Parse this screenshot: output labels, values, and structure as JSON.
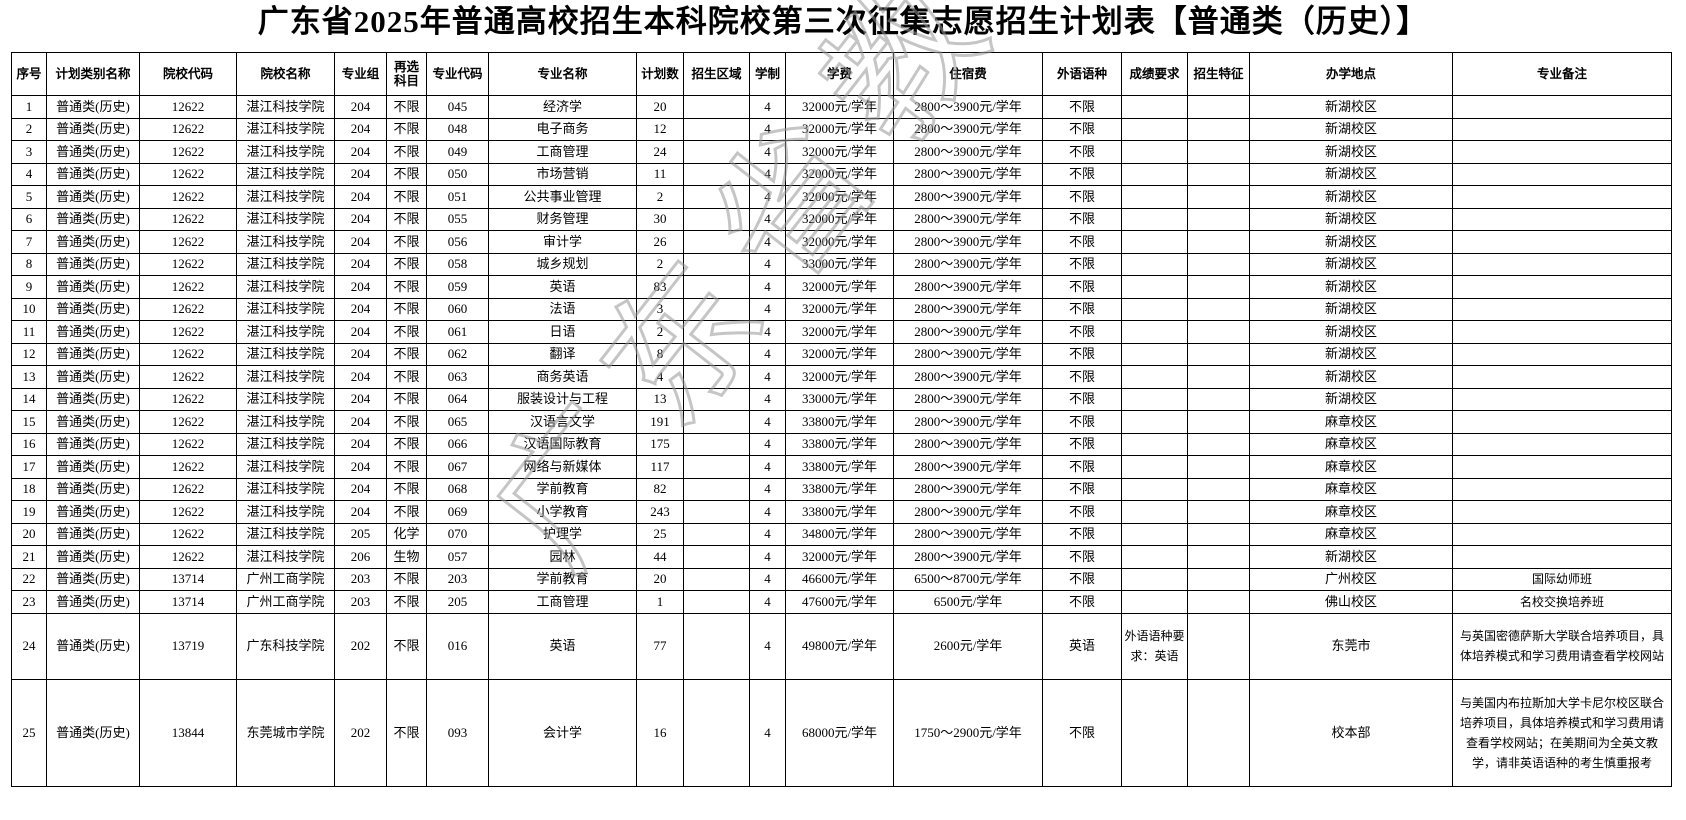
{
  "title": "广东省2025年普通高校招生本科院校第三次征集志愿招生计划表【普通类（历史）】",
  "watermark": "广东省教育考试院",
  "headers": [
    "序号",
    "计划类别名称",
    "院校代码",
    "院校名称",
    "专业组",
    "再选科目",
    "专业代码",
    "专业名称",
    "计划数",
    "招生区域",
    "学制",
    "学费",
    "住宿费",
    "外语语种",
    "成绩要求",
    "招生特征",
    "办学地点",
    "专业备注"
  ],
  "rows": [
    [
      "1",
      "普通类(历史)",
      "12622",
      "湛江科技学院",
      "204",
      "不限",
      "045",
      "经济学",
      "20",
      "",
      "4",
      "32000元/学年",
      "2800～3900元/学年",
      "不限",
      "",
      "",
      "新湖校区",
      ""
    ],
    [
      "2",
      "普通类(历史)",
      "12622",
      "湛江科技学院",
      "204",
      "不限",
      "048",
      "电子商务",
      "12",
      "",
      "4",
      "32000元/学年",
      "2800～3900元/学年",
      "不限",
      "",
      "",
      "新湖校区",
      ""
    ],
    [
      "3",
      "普通类(历史)",
      "12622",
      "湛江科技学院",
      "204",
      "不限",
      "049",
      "工商管理",
      "24",
      "",
      "4",
      "32000元/学年",
      "2800～3900元/学年",
      "不限",
      "",
      "",
      "新湖校区",
      ""
    ],
    [
      "4",
      "普通类(历史)",
      "12622",
      "湛江科技学院",
      "204",
      "不限",
      "050",
      "市场营销",
      "11",
      "",
      "4",
      "32000元/学年",
      "2800～3900元/学年",
      "不限",
      "",
      "",
      "新湖校区",
      ""
    ],
    [
      "5",
      "普通类(历史)",
      "12622",
      "湛江科技学院",
      "204",
      "不限",
      "051",
      "公共事业管理",
      "2",
      "",
      "4",
      "32000元/学年",
      "2800～3900元/学年",
      "不限",
      "",
      "",
      "新湖校区",
      ""
    ],
    [
      "6",
      "普通类(历史)",
      "12622",
      "湛江科技学院",
      "204",
      "不限",
      "055",
      "财务管理",
      "30",
      "",
      "4",
      "32000元/学年",
      "2800～3900元/学年",
      "不限",
      "",
      "",
      "新湖校区",
      ""
    ],
    [
      "7",
      "普通类(历史)",
      "12622",
      "湛江科技学院",
      "204",
      "不限",
      "056",
      "审计学",
      "26",
      "",
      "4",
      "32000元/学年",
      "2800～3900元/学年",
      "不限",
      "",
      "",
      "新湖校区",
      ""
    ],
    [
      "8",
      "普通类(历史)",
      "12622",
      "湛江科技学院",
      "204",
      "不限",
      "058",
      "城乡规划",
      "2",
      "",
      "4",
      "33000元/学年",
      "2800～3900元/学年",
      "不限",
      "",
      "",
      "新湖校区",
      ""
    ],
    [
      "9",
      "普通类(历史)",
      "12622",
      "湛江科技学院",
      "204",
      "不限",
      "059",
      "英语",
      "83",
      "",
      "4",
      "32000元/学年",
      "2800～3900元/学年",
      "不限",
      "",
      "",
      "新湖校区",
      ""
    ],
    [
      "10",
      "普通类(历史)",
      "12622",
      "湛江科技学院",
      "204",
      "不限",
      "060",
      "法语",
      "3",
      "",
      "4",
      "32000元/学年",
      "2800～3900元/学年",
      "不限",
      "",
      "",
      "新湖校区",
      ""
    ],
    [
      "11",
      "普通类(历史)",
      "12622",
      "湛江科技学院",
      "204",
      "不限",
      "061",
      "日语",
      "2",
      "",
      "4",
      "32000元/学年",
      "2800～3900元/学年",
      "不限",
      "",
      "",
      "新湖校区",
      ""
    ],
    [
      "12",
      "普通类(历史)",
      "12622",
      "湛江科技学院",
      "204",
      "不限",
      "062",
      "翻译",
      "8",
      "",
      "4",
      "32000元/学年",
      "2800～3900元/学年",
      "不限",
      "",
      "",
      "新湖校区",
      ""
    ],
    [
      "13",
      "普通类(历史)",
      "12622",
      "湛江科技学院",
      "204",
      "不限",
      "063",
      "商务英语",
      "4",
      "",
      "4",
      "32000元/学年",
      "2800～3900元/学年",
      "不限",
      "",
      "",
      "新湖校区",
      ""
    ],
    [
      "14",
      "普通类(历史)",
      "12622",
      "湛江科技学院",
      "204",
      "不限",
      "064",
      "服装设计与工程",
      "13",
      "",
      "4",
      "33000元/学年",
      "2800～3900元/学年",
      "不限",
      "",
      "",
      "新湖校区",
      ""
    ],
    [
      "15",
      "普通类(历史)",
      "12622",
      "湛江科技学院",
      "204",
      "不限",
      "065",
      "汉语言文学",
      "191",
      "",
      "4",
      "33800元/学年",
      "2800～3900元/学年",
      "不限",
      "",
      "",
      "麻章校区",
      ""
    ],
    [
      "16",
      "普通类(历史)",
      "12622",
      "湛江科技学院",
      "204",
      "不限",
      "066",
      "汉语国际教育",
      "175",
      "",
      "4",
      "33800元/学年",
      "2800～3900元/学年",
      "不限",
      "",
      "",
      "麻章校区",
      ""
    ],
    [
      "17",
      "普通类(历史)",
      "12622",
      "湛江科技学院",
      "204",
      "不限",
      "067",
      "网络与新媒体",
      "117",
      "",
      "4",
      "33800元/学年",
      "2800～3900元/学年",
      "不限",
      "",
      "",
      "麻章校区",
      ""
    ],
    [
      "18",
      "普通类(历史)",
      "12622",
      "湛江科技学院",
      "204",
      "不限",
      "068",
      "学前教育",
      "82",
      "",
      "4",
      "33800元/学年",
      "2800～3900元/学年",
      "不限",
      "",
      "",
      "麻章校区",
      ""
    ],
    [
      "19",
      "普通类(历史)",
      "12622",
      "湛江科技学院",
      "204",
      "不限",
      "069",
      "小学教育",
      "243",
      "",
      "4",
      "33800元/学年",
      "2800～3900元/学年",
      "不限",
      "",
      "",
      "麻章校区",
      ""
    ],
    [
      "20",
      "普通类(历史)",
      "12622",
      "湛江科技学院",
      "205",
      "化学",
      "070",
      "护理学",
      "25",
      "",
      "4",
      "34800元/学年",
      "2800～3900元/学年",
      "不限",
      "",
      "",
      "麻章校区",
      ""
    ],
    [
      "21",
      "普通类(历史)",
      "12622",
      "湛江科技学院",
      "206",
      "生物",
      "057",
      "园林",
      "44",
      "",
      "4",
      "32000元/学年",
      "2800～3900元/学年",
      "不限",
      "",
      "",
      "新湖校区",
      ""
    ],
    [
      "22",
      "普通类(历史)",
      "13714",
      "广州工商学院",
      "203",
      "不限",
      "203",
      "学前教育",
      "20",
      "",
      "4",
      "46600元/学年",
      "6500～8700元/学年",
      "不限",
      "",
      "",
      "广州校区",
      "国际幼师班"
    ],
    [
      "23",
      "普通类(历史)",
      "13714",
      "广州工商学院",
      "203",
      "不限",
      "205",
      "工商管理",
      "1",
      "",
      "4",
      "47600元/学年",
      "6500元/学年",
      "不限",
      "",
      "",
      "佛山校区",
      "名校交换培养班"
    ],
    [
      "24",
      "普通类(历史)",
      "13719",
      "广东科技学院",
      "202",
      "不限",
      "016",
      "英语",
      "77",
      "",
      "4",
      "49800元/学年",
      "2600元/学年",
      "英语",
      "外语语种要求：英语",
      "",
      "东莞市",
      "与英国密德萨斯大学联合培养项目，具体培养模式和学习费用请查看学校网站"
    ],
    [
      "25",
      "普通类(历史)",
      "13844",
      "东莞城市学院",
      "202",
      "不限",
      "093",
      "会计学",
      "16",
      "",
      "4",
      "68000元/学年",
      "1750～2900元/学年",
      "不限",
      "",
      "",
      "校本部",
      "与美国内布拉斯加大学卡尼尔校区联合培养项目，具体培养模式和学习费用请查看学校网站；在美期间为全英文教学，请非英语语种的考生慎重报考"
    ]
  ]
}
